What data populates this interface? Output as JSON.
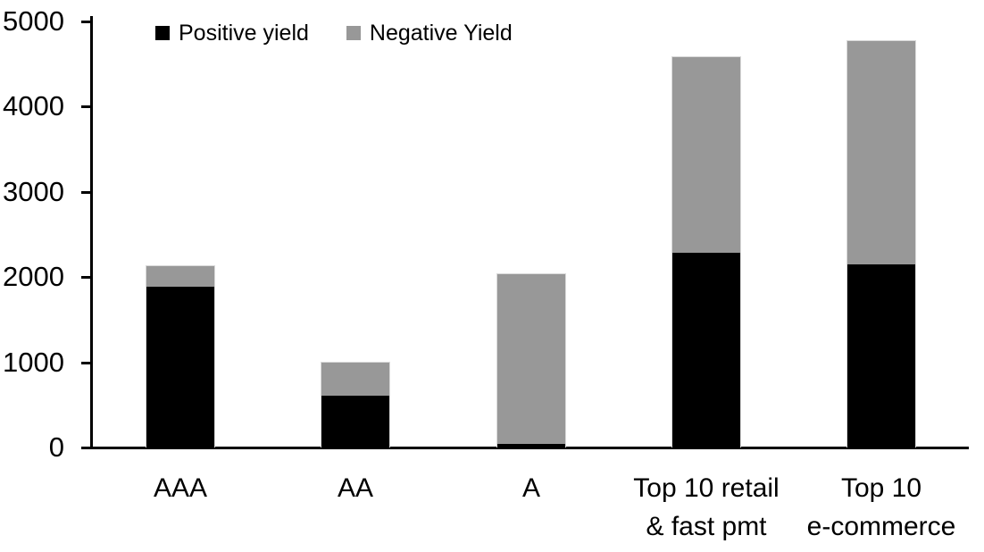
{
  "chart_data": {
    "type": "bar",
    "stacked": true,
    "title": "",
    "xlabel": "",
    "ylabel": "",
    "grid": false,
    "legend_position": "top-left-inside",
    "ylim": [
      0,
      5000
    ],
    "yticks": [
      0,
      1000,
      2000,
      3000,
      4000,
      5000
    ],
    "ytick_labels": [
      "0",
      "1000",
      "2000",
      "3000",
      "4000",
      "5000"
    ],
    "categories": [
      "AAA",
      "AA",
      "A",
      "Top 10 retail & fast pmt",
      "Top 10 e-commerce"
    ],
    "category_lines": [
      [
        "AAA"
      ],
      [
        "AA"
      ],
      [
        "A"
      ],
      [
        "Top 10 retail",
        "& fast pmt"
      ],
      [
        "Top 10",
        "e-commerce"
      ]
    ],
    "series": [
      {
        "name": "Positive yield",
        "color": "#000000",
        "values": [
          1890,
          610,
          40,
          2290,
          2150
        ]
      },
      {
        "name": "Negative Yield",
        "color": "#989898",
        "values": [
          240,
          390,
          1990,
          2290,
          2620
        ]
      }
    ],
    "colors": {
      "axis": "#000000",
      "background": "#ffffff",
      "positive": "#000000",
      "negative": "#989898"
    }
  }
}
